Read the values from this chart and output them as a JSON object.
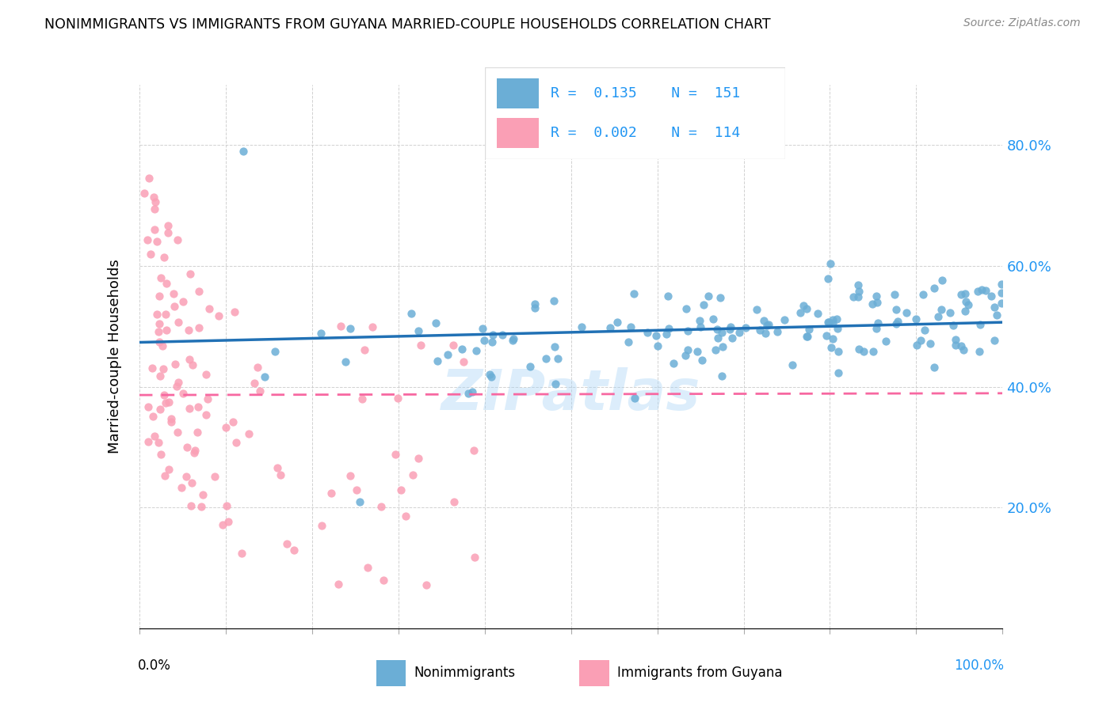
{
  "title": "NONIMMIGRANTS VS IMMIGRANTS FROM GUYANA MARRIED-COUPLE HOUSEHOLDS CORRELATION CHART",
  "source": "Source: ZipAtlas.com",
  "ylabel": "Married-couple Households",
  "y_tick_labels": [
    "20.0%",
    "40.0%",
    "60.0%",
    "80.0%"
  ],
  "legend_blue_R": "0.135",
  "legend_blue_N": "151",
  "legend_pink_R": "0.002",
  "legend_pink_N": "114",
  "blue_color": "#6baed6",
  "pink_color": "#fa9fb5",
  "blue_line_color": "#2171b5",
  "pink_line_color": "#f768a1",
  "watermark": "ZIPatlas"
}
